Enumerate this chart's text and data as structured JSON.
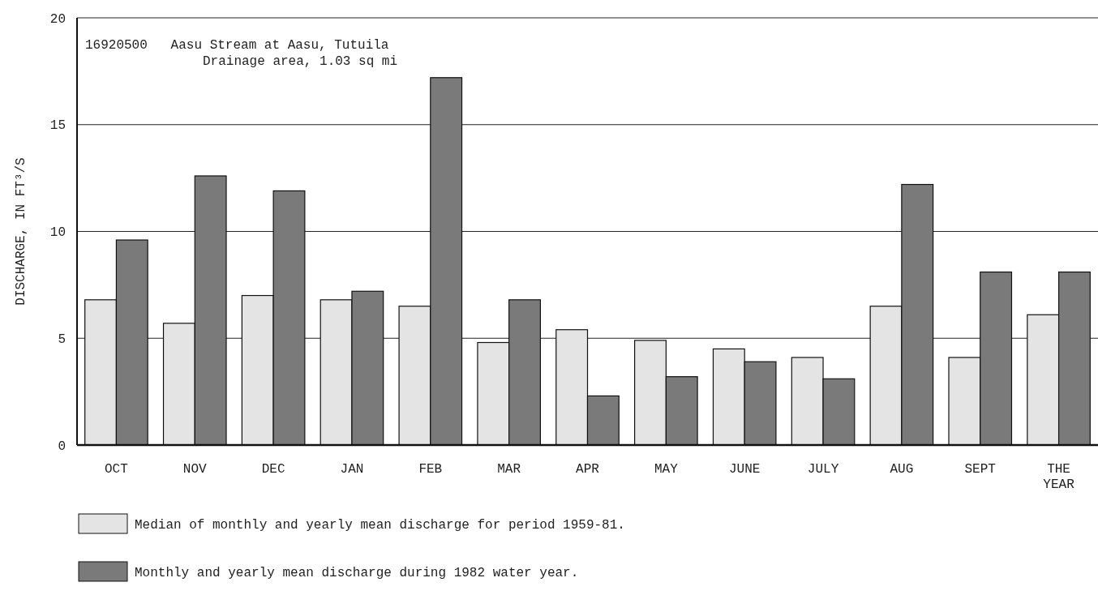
{
  "chart_data": {
    "type": "bar",
    "title": "16920500   Aasu Stream at Aasu, Tutuila",
    "subtitle": "Drainage area, 1.03 sq mi",
    "ylabel": "DISCHARGE, IN FT³/S",
    "categories": [
      "OCT",
      "NOV",
      "DEC",
      "JAN",
      "FEB",
      "MAR",
      "APR",
      "MAY",
      "JUNE",
      "JULY",
      "AUG",
      "SEPT",
      "THE YEAR"
    ],
    "series": [
      {
        "name": "Median of monthly and yearly mean discharge for period 1959-81.",
        "color": "#e4e4e4",
        "values": [
          6.8,
          5.7,
          7.0,
          6.8,
          6.5,
          4.8,
          5.4,
          4.9,
          4.5,
          4.1,
          6.5,
          4.1,
          6.1
        ]
      },
      {
        "name": "Monthly and yearly mean discharge during 1982 water year.",
        "color": "#7a7a7a",
        "values": [
          9.6,
          12.6,
          11.9,
          7.2,
          17.2,
          6.8,
          2.3,
          3.2,
          3.9,
          3.1,
          12.2,
          8.1,
          8.1
        ]
      }
    ],
    "ylim": [
      0,
      20
    ],
    "yticks": [
      0,
      5,
      10,
      15,
      20
    ],
    "grid": "y",
    "legend": "bottom"
  }
}
